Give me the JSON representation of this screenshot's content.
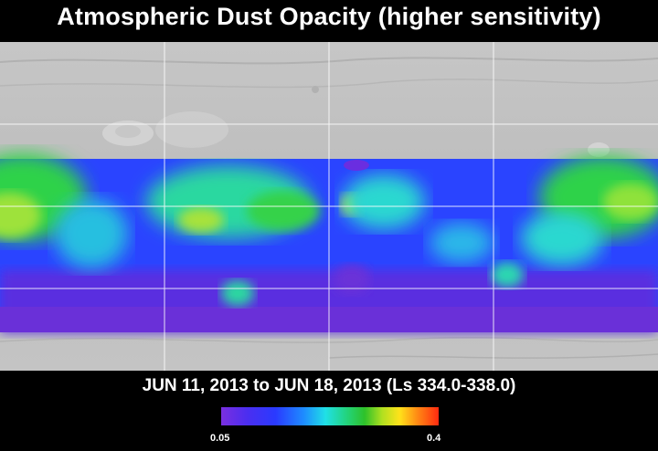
{
  "title": "Atmospheric Dust Opacity (higher sensitivity)",
  "date_range": "JUN 11, 2013 to JUN 18, 2013 (Ls 334.0-338.0)",
  "colorbar": {
    "min_label": "0.05",
    "max_label": "0.4",
    "colors": [
      "#7a2fe0",
      "#2a3aff",
      "#20e0e6",
      "#2ec12a",
      "#ffe21a",
      "#ff2a10"
    ]
  },
  "map_colors": {
    "terrain": "#bdbdbd",
    "grid": "#ffffff",
    "low_opacity": "#5a2ee0",
    "mid_opacity": "#2a4cff",
    "cyan_opacity": "#2ad8d0",
    "green_opacity": "#2fd24a",
    "yellow_opacity": "#d7e51e"
  }
}
